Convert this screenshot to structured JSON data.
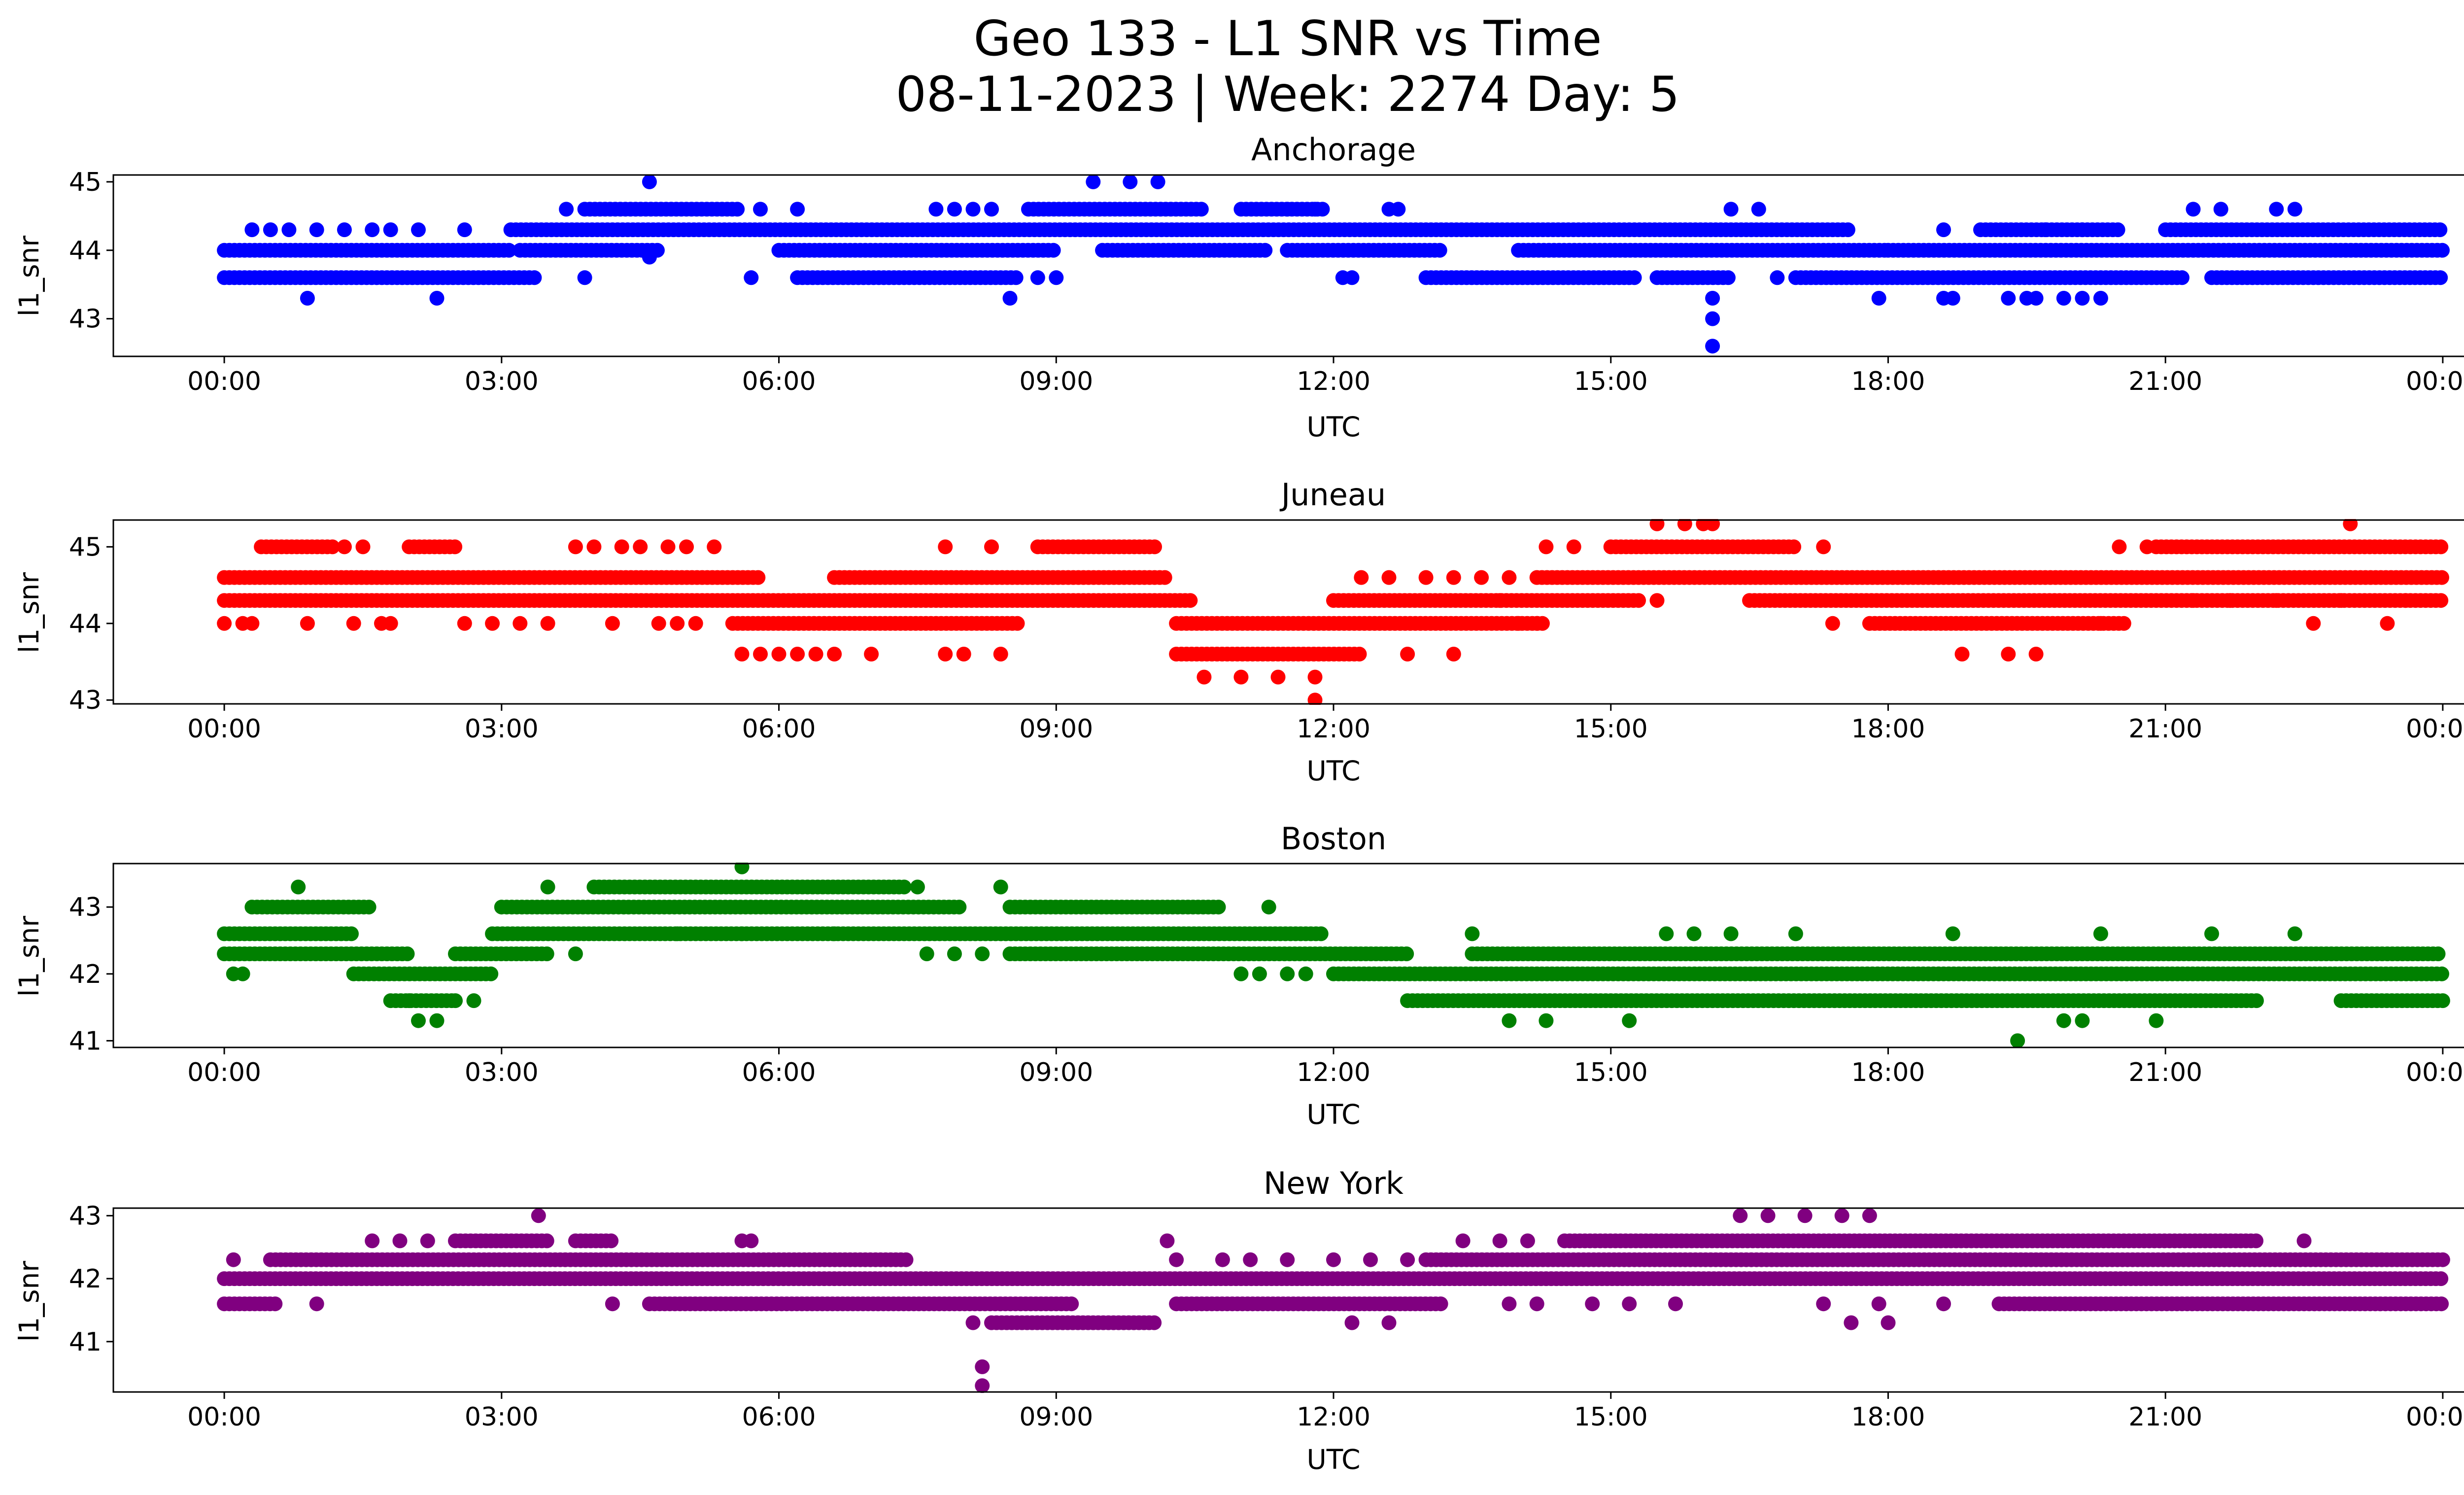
{
  "figure": {
    "title_line1": "Geo 133 - L1 SNR vs Time",
    "title_line2": "08-11-2023 | Week: 2274 Day: 5"
  },
  "chart_data": [
    {
      "type": "scatter",
      "title": "Anchorage",
      "xlabel": "UTC",
      "ylabel": "l1_snr",
      "color": "#0000ff",
      "xlim_hours": [
        -1.2,
        25.2
      ],
      "ylim": [
        42.45,
        45.1
      ],
      "xticks": [
        "00:00",
        "03:00",
        "06:00",
        "09:00",
        "12:00",
        "15:00",
        "18:00",
        "21:00",
        "00:00"
      ],
      "yticks": [
        43,
        44,
        45
      ],
      "bands": [
        {
          "y": 44.0,
          "ranges": [
            [
              0,
              3.1
            ],
            [
              3.2,
              4.7
            ],
            [
              6.0,
              9.0
            ],
            [
              9.5,
              11.3
            ],
            [
              11.5,
              13.2
            ],
            [
              14.0,
              18.0
            ],
            [
              18.0,
              24.0
            ]
          ]
        },
        {
          "y": 43.6,
          "ranges": [
            [
              0,
              3.4
            ],
            [
              6.2,
              8.6
            ],
            [
              13.0,
              15.3
            ],
            [
              15.5,
              16.3
            ],
            [
              17.0,
              21.2
            ],
            [
              21.5,
              24.0
            ]
          ]
        },
        {
          "y": 44.3,
          "ranges": [
            [
              3.1,
              17.6
            ],
            [
              19.0,
              20.5
            ],
            [
              21.0,
              24.0
            ]
          ]
        },
        {
          "y": 44.6,
          "ranges": [
            [
              3.9,
              5.6
            ],
            [
              8.7,
              10.6
            ],
            [
              11.0,
              11.9
            ]
          ]
        }
      ],
      "points": [
        [
          0.3,
          44.3
        ],
        [
          0.5,
          44.3
        ],
        [
          0.7,
          44.3
        ],
        [
          1.0,
          44.3
        ],
        [
          1.3,
          44.3
        ],
        [
          1.6,
          44.3
        ],
        [
          1.8,
          44.3
        ],
        [
          2.1,
          44.3
        ],
        [
          2.6,
          44.3
        ],
        [
          0.9,
          43.3
        ],
        [
          2.3,
          43.3
        ],
        [
          3.9,
          43.6
        ],
        [
          4.6,
          43.9
        ],
        [
          5.7,
          43.6
        ],
        [
          3.7,
          44.6
        ],
        [
          5.8,
          44.6
        ],
        [
          6.2,
          44.6
        ],
        [
          7.7,
          44.6
        ],
        [
          7.9,
          44.6
        ],
        [
          8.1,
          44.6
        ],
        [
          8.3,
          44.6
        ],
        [
          8.5,
          43.3
        ],
        [
          8.8,
          43.6
        ],
        [
          9.0,
          43.6
        ],
        [
          11.5,
          44.6
        ],
        [
          11.8,
          44.6
        ],
        [
          12.1,
          43.6
        ],
        [
          12.2,
          43.6
        ],
        [
          12.6,
          44.6
        ],
        [
          12.7,
          44.6
        ],
        [
          16.3,
          44.6
        ],
        [
          16.6,
          44.6
        ],
        [
          16.8,
          43.6
        ],
        [
          16.1,
          43.3
        ],
        [
          16.1,
          43.0
        ],
        [
          16.1,
          42.6
        ],
        [
          4.6,
          45.0
        ],
        [
          9.4,
          45.0
        ],
        [
          9.8,
          45.0
        ],
        [
          10.1,
          45.0
        ],
        [
          17.9,
          43.3
        ],
        [
          18.6,
          43.3
        ],
        [
          18.7,
          43.3
        ],
        [
          19.3,
          43.3
        ],
        [
          19.5,
          43.3
        ],
        [
          19.6,
          43.3
        ],
        [
          19.9,
          43.3
        ],
        [
          20.1,
          43.3
        ],
        [
          20.3,
          43.3
        ],
        [
          18.6,
          44.3
        ],
        [
          19.7,
          44.3
        ],
        [
          20.1,
          44.3
        ],
        [
          21.3,
          44.6
        ],
        [
          21.6,
          44.6
        ],
        [
          22.2,
          44.6
        ],
        [
          22.4,
          44.6
        ]
      ]
    },
    {
      "type": "scatter",
      "title": "Juneau",
      "xlabel": "UTC",
      "ylabel": "l1_snr",
      "color": "#ff0000",
      "xlim_hours": [
        -1.2,
        25.2
      ],
      "ylim": [
        42.95,
        45.35
      ],
      "xticks": [
        "00:00",
        "03:00",
        "06:00",
        "09:00",
        "12:00",
        "15:00",
        "18:00",
        "21:00",
        "00:00"
      ],
      "yticks": [
        43,
        44,
        45
      ],
      "bands": [
        {
          "y": 44.6,
          "ranges": [
            [
              0,
              5.8
            ],
            [
              6.6,
              10.2
            ],
            [
              14.2,
              24.0
            ]
          ]
        },
        {
          "y": 44.3,
          "ranges": [
            [
              0,
              10.5
            ],
            [
              12.0,
              15.3
            ],
            [
              16.5,
              24.0
            ]
          ]
        },
        {
          "y": 44.0,
          "ranges": [
            [
              5.5,
              8.6
            ],
            [
              10.3,
              14.3
            ],
            [
              17.8,
              20.6
            ]
          ]
        },
        {
          "y": 43.6,
          "ranges": [
            [
              10.3,
              12.3
            ]
          ]
        },
        {
          "y": 45.0,
          "ranges": [
            [
              0.4,
              1.2
            ],
            [
              2.0,
              2.5
            ],
            [
              8.8,
              10.1
            ],
            [
              15.0,
              17.0
            ],
            [
              20.9,
              24.0
            ]
          ]
        }
      ],
      "points": [
        [
          0,
          44.0
        ],
        [
          0.2,
          44.0
        ],
        [
          0.3,
          44.0
        ],
        [
          0.9,
          44.0
        ],
        [
          1.4,
          44.0
        ],
        [
          1.7,
          44.0
        ],
        [
          1.8,
          44.0
        ],
        [
          2.6,
          44.0
        ],
        [
          2.9,
          44.0
        ],
        [
          3.2,
          44.0
        ],
        [
          3.5,
          44.0
        ],
        [
          4.2,
          44.0
        ],
        [
          4.7,
          44.0
        ],
        [
          4.9,
          44.0
        ],
        [
          5.1,
          44.0
        ],
        [
          1.3,
          45.0
        ],
        [
          1.5,
          45.0
        ],
        [
          3.8,
          45.0
        ],
        [
          4.0,
          45.0
        ],
        [
          4.3,
          45.0
        ],
        [
          4.5,
          45.0
        ],
        [
          4.8,
          45.0
        ],
        [
          5.0,
          45.0
        ],
        [
          5.3,
          45.0
        ],
        [
          7.8,
          45.0
        ],
        [
          8.3,
          45.0
        ],
        [
          5.6,
          43.6
        ],
        [
          5.8,
          43.6
        ],
        [
          6.0,
          43.6
        ],
        [
          6.2,
          43.6
        ],
        [
          6.4,
          43.6
        ],
        [
          6.6,
          43.6
        ],
        [
          7.0,
          43.6
        ],
        [
          7.8,
          43.6
        ],
        [
          8.0,
          43.6
        ],
        [
          8.4,
          43.6
        ],
        [
          10.6,
          43.3
        ],
        [
          11.0,
          43.3
        ],
        [
          11.4,
          43.3
        ],
        [
          11.8,
          43.3
        ],
        [
          11.8,
          43.0
        ],
        [
          12.3,
          44.6
        ],
        [
          12.6,
          44.6
        ],
        [
          13.0,
          44.6
        ],
        [
          13.3,
          44.6
        ],
        [
          13.6,
          44.6
        ],
        [
          13.9,
          44.6
        ],
        [
          12.8,
          43.6
        ],
        [
          13.3,
          43.6
        ],
        [
          13.8,
          44.3
        ],
        [
          14.0,
          44.0
        ],
        [
          14.2,
          44.0
        ],
        [
          15.5,
          45.3
        ],
        [
          15.8,
          45.3
        ],
        [
          16.0,
          45.3
        ],
        [
          16.1,
          45.3
        ],
        [
          15.5,
          44.3
        ],
        [
          14.3,
          45.0
        ],
        [
          14.6,
          45.0
        ],
        [
          17.3,
          45.0
        ],
        [
          17.4,
          44.0
        ],
        [
          18.8,
          43.6
        ],
        [
          19.3,
          43.6
        ],
        [
          19.6,
          43.6
        ],
        [
          20.3,
          44.0
        ],
        [
          20.5,
          45.0
        ],
        [
          20.8,
          45.0
        ],
        [
          23.0,
          45.3
        ],
        [
          22.6,
          44.0
        ],
        [
          23.4,
          44.0
        ],
        [
          21.3,
          44.3
        ],
        [
          21.7,
          44.3
        ],
        [
          22.2,
          44.3
        ],
        [
          22.9,
          44.3
        ],
        [
          23.6,
          44.3
        ]
      ]
    },
    {
      "type": "scatter",
      "title": "Boston",
      "xlabel": "UTC",
      "ylabel": "l1_snr",
      "color": "#008000",
      "xlim_hours": [
        -1.2,
        25.2
      ],
      "ylim": [
        40.9,
        43.65
      ],
      "xticks": [
        "00:00",
        "03:00",
        "06:00",
        "09:00",
        "12:00",
        "15:00",
        "18:00",
        "21:00",
        "00:00"
      ],
      "yticks": [
        41,
        42,
        43
      ],
      "bands": [
        {
          "y": 42.3,
          "ranges": [
            [
              0,
              2.0
            ],
            [
              2.5,
              3.5
            ],
            [
              8.5,
              12.8
            ],
            [
              13.5,
              24.0
            ]
          ]
        },
        {
          "y": 42.6,
          "ranges": [
            [
              0,
              1.4
            ],
            [
              2.9,
              11.9
            ]
          ]
        },
        {
          "y": 42.0,
          "ranges": [
            [
              1.4,
              2.9
            ],
            [
              12.0,
              24.0
            ]
          ]
        },
        {
          "y": 43.0,
          "ranges": [
            [
              0.3,
              1.6
            ],
            [
              3.0,
              8.0
            ],
            [
              8.5,
              10.8
            ]
          ]
        },
        {
          "y": 43.3,
          "ranges": [
            [
              4.0,
              7.4
            ]
          ]
        },
        {
          "y": 41.6,
          "ranges": [
            [
              1.8,
              2.5
            ],
            [
              12.8,
              22.0
            ],
            [
              22.9,
              24.0
            ]
          ]
        }
      ],
      "points": [
        [
          0.1,
          42.0
        ],
        [
          0.2,
          42.0
        ],
        [
          0.8,
          43.3
        ],
        [
          2.1,
          41.3
        ],
        [
          2.3,
          41.3
        ],
        [
          2.0,
          41.6
        ],
        [
          2.5,
          41.6
        ],
        [
          2.7,
          41.6
        ],
        [
          3.5,
          43.3
        ],
        [
          3.8,
          42.3
        ],
        [
          4.9,
          42.6
        ],
        [
          5.6,
          43.6
        ],
        [
          5.6,
          42.6
        ],
        [
          6.6,
          42.6
        ],
        [
          7.6,
          42.3
        ],
        [
          7.9,
          42.3
        ],
        [
          8.2,
          42.3
        ],
        [
          8.4,
          43.3
        ],
        [
          7.5,
          43.3
        ],
        [
          11.3,
          43.0
        ],
        [
          11.0,
          42.0
        ],
        [
          11.2,
          42.0
        ],
        [
          11.5,
          42.0
        ],
        [
          11.7,
          42.0
        ],
        [
          13.5,
          42.6
        ],
        [
          13.9,
          41.3
        ],
        [
          14.3,
          41.3
        ],
        [
          15.2,
          41.3
        ],
        [
          15.6,
          42.6
        ],
        [
          15.9,
          42.6
        ],
        [
          16.3,
          42.6
        ],
        [
          17.0,
          42.6
        ],
        [
          18.7,
          42.6
        ],
        [
          19.4,
          41.0
        ],
        [
          19.9,
          41.3
        ],
        [
          20.1,
          41.3
        ],
        [
          20.9,
          41.3
        ],
        [
          20.3,
          42.6
        ],
        [
          21.5,
          42.6
        ],
        [
          22.4,
          42.6
        ]
      ]
    },
    {
      "type": "scatter",
      "title": "New York",
      "xlabel": "UTC",
      "ylabel": "l1_snr",
      "color": "#800080",
      "xlim_hours": [
        -1.2,
        25.2
      ],
      "ylim": [
        40.2,
        43.12
      ],
      "xticks": [
        "00:00",
        "03:00",
        "06:00",
        "09:00",
        "12:00",
        "15:00",
        "18:00",
        "21:00",
        "00:00"
      ],
      "yticks": [
        41,
        42,
        43
      ],
      "bands": [
        {
          "y": 42.0,
          "ranges": [
            [
              0,
              24.0
            ]
          ]
        },
        {
          "y": 42.3,
          "ranges": [
            [
              0.5,
              7.4
            ],
            [
              13.0,
              24.0
            ]
          ]
        },
        {
          "y": 41.6,
          "ranges": [
            [
              0,
              0.6
            ],
            [
              4.6,
              9.2
            ],
            [
              10.3,
              13.2
            ],
            [
              19.2,
              24.0
            ]
          ]
        },
        {
          "y": 42.6,
          "ranges": [
            [
              2.5,
              3.5
            ],
            [
              3.8,
              4.2
            ],
            [
              14.5,
              22.0
            ]
          ]
        },
        {
          "y": 41.3,
          "ranges": [
            [
              8.3,
              10.1
            ]
          ]
        }
      ],
      "points": [
        [
          0.1,
          42.3
        ],
        [
          1.0,
          41.6
        ],
        [
          1.6,
          42.6
        ],
        [
          1.9,
          42.6
        ],
        [
          2.2,
          42.6
        ],
        [
          3.4,
          43.0
        ],
        [
          4.2,
          41.6
        ],
        [
          5.6,
          42.6
        ],
        [
          5.7,
          42.6
        ],
        [
          8.1,
          41.3
        ],
        [
          8.2,
          40.6
        ],
        [
          8.2,
          40.3
        ],
        [
          10.2,
          42.6
        ],
        [
          10.3,
          42.3
        ],
        [
          10.8,
          42.3
        ],
        [
          11.1,
          42.3
        ],
        [
          11.5,
          42.3
        ],
        [
          12.0,
          42.3
        ],
        [
          12.2,
          41.3
        ],
        [
          12.6,
          41.3
        ],
        [
          12.8,
          42.3
        ],
        [
          12.4,
          42.3
        ],
        [
          13.4,
          42.6
        ],
        [
          13.8,
          42.6
        ],
        [
          14.1,
          42.6
        ],
        [
          13.9,
          41.6
        ],
        [
          14.2,
          41.6
        ],
        [
          14.8,
          41.6
        ],
        [
          15.2,
          41.6
        ],
        [
          15.7,
          41.6
        ],
        [
          16.4,
          43.0
        ],
        [
          16.7,
          43.0
        ],
        [
          17.1,
          43.0
        ],
        [
          17.5,
          43.0
        ],
        [
          17.8,
          43.0
        ],
        [
          17.6,
          41.3
        ],
        [
          18.0,
          41.3
        ],
        [
          17.3,
          41.6
        ],
        [
          17.9,
          41.6
        ],
        [
          18.6,
          41.6
        ],
        [
          22.5,
          42.6
        ]
      ]
    }
  ]
}
